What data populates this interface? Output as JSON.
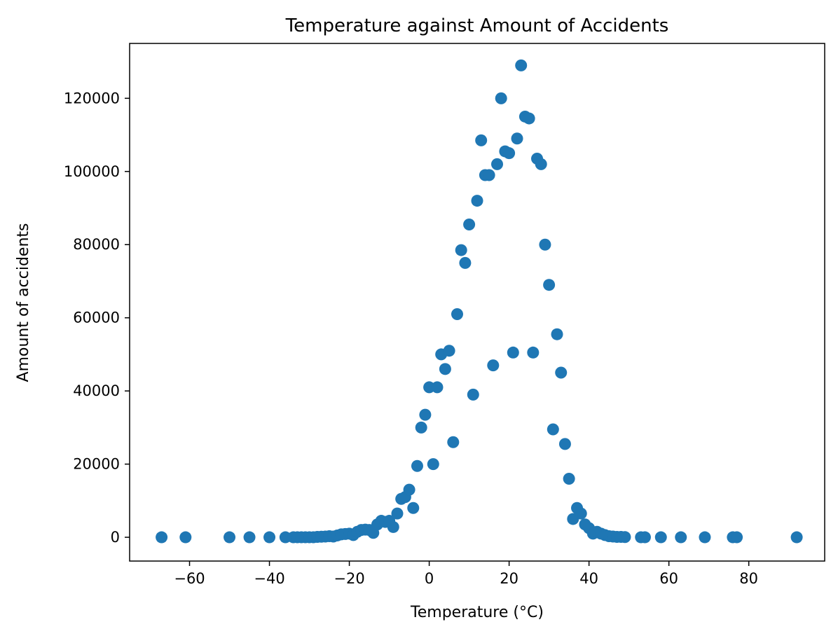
{
  "chart_data": {
    "type": "scatter",
    "title": "Temperature against Amount of Accidents",
    "xlabel": "Temperature (°C)",
    "ylabel": "Amount of accidents",
    "xlim": [
      -75,
      99
    ],
    "ylim": [
      -6500,
      135000
    ],
    "xticks": [
      -60,
      -40,
      -20,
      0,
      20,
      40,
      60,
      80
    ],
    "yticks": [
      0,
      20000,
      40000,
      60000,
      80000,
      100000,
      120000
    ],
    "grid": false,
    "legend": "none",
    "marker_color": "#1f77b4",
    "points": [
      [
        -67,
        0
      ],
      [
        -61,
        0
      ],
      [
        -50,
        0
      ],
      [
        -45,
        0
      ],
      [
        -40,
        0
      ],
      [
        -36,
        0
      ],
      [
        -34,
        0
      ],
      [
        -33,
        0
      ],
      [
        -32,
        0
      ],
      [
        -31,
        0
      ],
      [
        -30,
        0
      ],
      [
        -29,
        0
      ],
      [
        -28,
        100
      ],
      [
        -27,
        150
      ],
      [
        -26,
        200
      ],
      [
        -25,
        300
      ],
      [
        -24,
        200
      ],
      [
        -23,
        500
      ],
      [
        -22,
        800
      ],
      [
        -21,
        900
      ],
      [
        -20,
        1000
      ],
      [
        -19,
        600
      ],
      [
        -18,
        1500
      ],
      [
        -17,
        2000
      ],
      [
        -16,
        2100
      ],
      [
        -15,
        2000
      ],
      [
        -14,
        1200
      ],
      [
        -13,
        3500
      ],
      [
        -12,
        4500
      ],
      [
        -11,
        4200
      ],
      [
        -10,
        4500
      ],
      [
        -9,
        2800
      ],
      [
        -8,
        6500
      ],
      [
        -7,
        10500
      ],
      [
        -6,
        11000
      ],
      [
        -5,
        13000
      ],
      [
        -4,
        8000
      ],
      [
        -3,
        19500
      ],
      [
        -2,
        30000
      ],
      [
        -1,
        33500
      ],
      [
        0,
        41000
      ],
      [
        1,
        20000
      ],
      [
        2,
        41000
      ],
      [
        3,
        50000
      ],
      [
        4,
        46000
      ],
      [
        5,
        51000
      ],
      [
        6,
        26000
      ],
      [
        7,
        61000
      ],
      [
        8,
        78500
      ],
      [
        9,
        75000
      ],
      [
        10,
        85500
      ],
      [
        11,
        39000
      ],
      [
        12,
        92000
      ],
      [
        13,
        108500
      ],
      [
        14,
        99000
      ],
      [
        15,
        99000
      ],
      [
        16,
        47000
      ],
      [
        17,
        102000
      ],
      [
        18,
        120000
      ],
      [
        19,
        105500
      ],
      [
        20,
        105000
      ],
      [
        21,
        50500
      ],
      [
        22,
        109000
      ],
      [
        23,
        129000
      ],
      [
        24,
        115000
      ],
      [
        25,
        114500
      ],
      [
        26,
        50500
      ],
      [
        27,
        103500
      ],
      [
        28,
        102000
      ],
      [
        29,
        80000
      ],
      [
        30,
        69000
      ],
      [
        31,
        29500
      ],
      [
        32,
        55500
      ],
      [
        33,
        45000
      ],
      [
        34,
        25500
      ],
      [
        35,
        16000
      ],
      [
        36,
        5000
      ],
      [
        37,
        8000
      ],
      [
        38,
        6500
      ],
      [
        39,
        3500
      ],
      [
        40,
        2500
      ],
      [
        41,
        1000
      ],
      [
        42,
        1500
      ],
      [
        43,
        1000
      ],
      [
        44,
        600
      ],
      [
        45,
        300
      ],
      [
        46,
        200
      ],
      [
        47,
        100
      ],
      [
        48,
        100
      ],
      [
        49,
        50
      ],
      [
        53,
        0
      ],
      [
        54,
        0
      ],
      [
        58,
        0
      ],
      [
        63,
        0
      ],
      [
        69,
        0
      ],
      [
        76,
        0
      ],
      [
        77,
        0
      ],
      [
        92,
        0
      ]
    ]
  }
}
